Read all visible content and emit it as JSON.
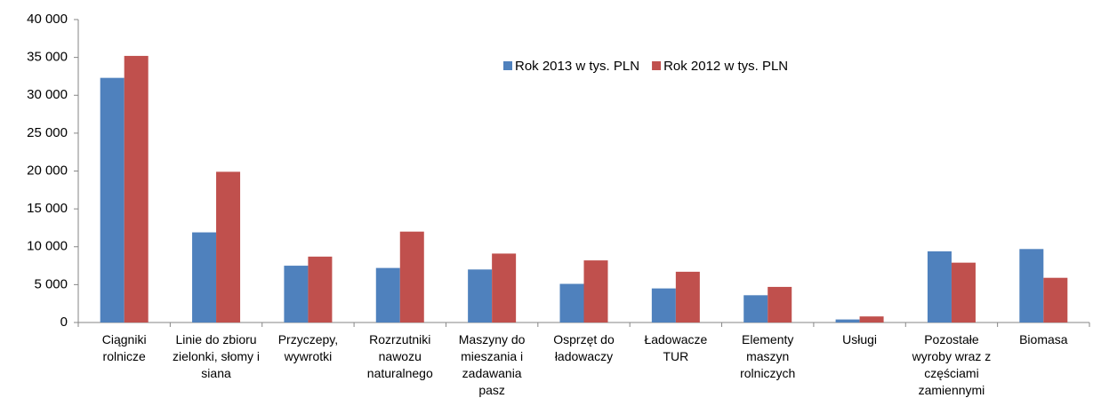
{
  "chart_data": {
    "type": "bar",
    "categories": [
      "Ciągniki rolnicze",
      "Linie do zbioru zielonki, słomy i siana",
      "Przyczepy, wywrotki",
      "Rozrzutniki nawozu naturalnego",
      "Maszyny do mieszania i zadawania pasz",
      "Osprzęt do ładowaczy",
      "Ładowacze TUR",
      "Elementy maszyn rolniczych",
      "Usługi",
      "Pozostałe wyroby wraz z częściami zamiennymi",
      "Biomasa"
    ],
    "series": [
      {
        "name": "Rok 2013 w tys. PLN",
        "color": "#4f81bd",
        "values": [
          32300,
          11900,
          7500,
          7200,
          7000,
          5100,
          4500,
          3600,
          400,
          9400,
          9700
        ]
      },
      {
        "name": "Rok 2012 w tys. PLN",
        "color": "#c0504d",
        "values": [
          35200,
          19900,
          8700,
          12000,
          9100,
          8200,
          6700,
          4700,
          800,
          7900,
          5900
        ]
      }
    ],
    "ylim": [
      0,
      40000
    ],
    "yticks": [
      {
        "value": 0,
        "label": "0"
      },
      {
        "value": 5000,
        "label": "5 000"
      },
      {
        "value": 10000,
        "label": "10 000"
      },
      {
        "value": 15000,
        "label": "15 000"
      },
      {
        "value": 20000,
        "label": "20 000"
      },
      {
        "value": 25000,
        "label": "25 000"
      },
      {
        "value": 30000,
        "label": "30 000"
      },
      {
        "value": 35000,
        "label": "35 000"
      },
      {
        "value": 40000,
        "label": "40 000"
      }
    ],
    "legend": "top-center"
  }
}
